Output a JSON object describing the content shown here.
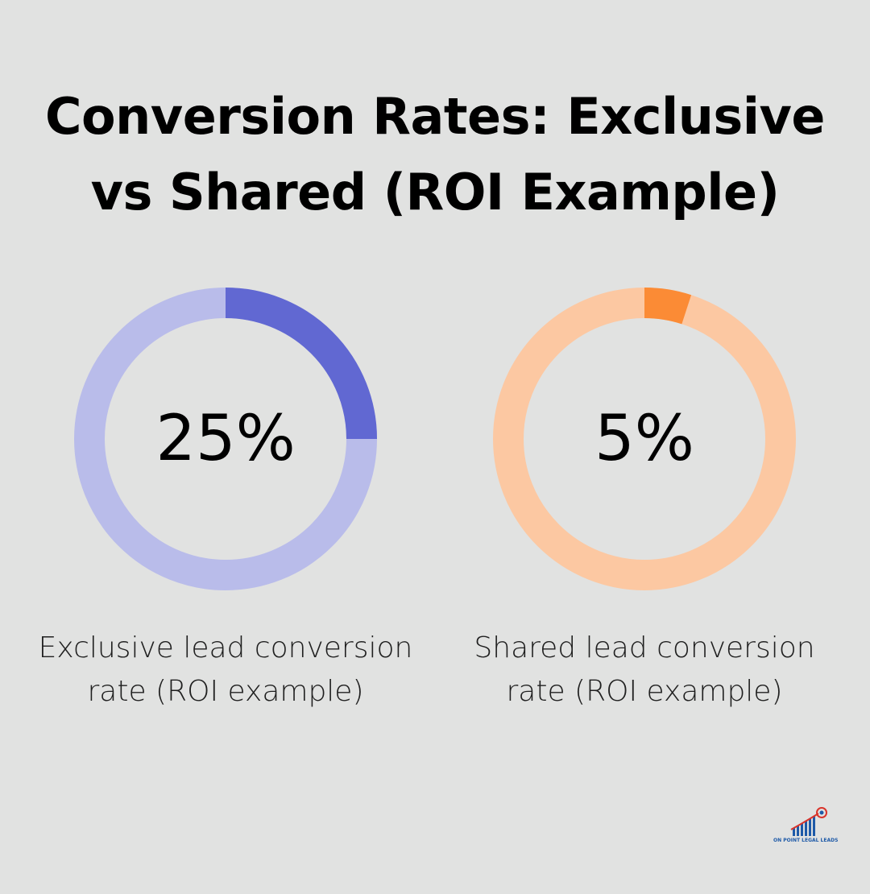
{
  "title": {
    "line1": "Conversion Rates: Exclusive",
    "line2": "vs Shared (ROI Example)"
  },
  "chart_data": [
    {
      "type": "pie",
      "value": 25,
      "display": "25%",
      "label_line1": "Exclusive lead conversion",
      "label_line2": "rate (ROI example)",
      "colors": {
        "fill": "#6168d2",
        "track": "#b9bcea"
      }
    },
    {
      "type": "pie",
      "value": 5,
      "display": "5%",
      "label_line1": "Shared lead conversion",
      "label_line2": "rate (ROI example)",
      "colors": {
        "fill": "#fb8b35",
        "track": "#fcc8a2"
      }
    }
  ],
  "logo": {
    "text": "ON POINT LEGAL LEADS",
    "icon": "bar-chart-target-icon",
    "color": "#1e5aa8"
  }
}
